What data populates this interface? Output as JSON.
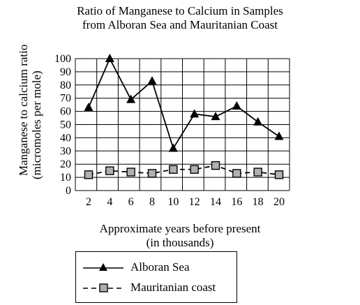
{
  "chart_data": {
    "type": "line",
    "title_line1": "Ratio of Manganese to Calcium in Samples",
    "title_line2": "from Alboran Sea and Mauritanian Coast",
    "xlabel_line1": "Approximate years before present",
    "xlabel_line2": "(in thousands)",
    "ylabel_line1": "Manganese to calcium ratio",
    "ylabel_line2": "(micromoles per mole)",
    "x": [
      2,
      4,
      6,
      8,
      10,
      12,
      14,
      16,
      18,
      20
    ],
    "xlim": [
      2,
      20
    ],
    "ylim": [
      0,
      100
    ],
    "yticks": [
      0,
      10,
      20,
      30,
      40,
      50,
      60,
      70,
      80,
      90,
      100
    ],
    "grid": true,
    "legend_position": "bottom",
    "series": [
      {
        "name": "Alboran Sea",
        "marker": "triangle",
        "line": "solid",
        "values": [
          63,
          100,
          69,
          83,
          32,
          58,
          56,
          64,
          52,
          41
        ]
      },
      {
        "name": "Mauritanian coast",
        "marker": "square",
        "line": "dashed",
        "values": [
          12,
          15,
          14,
          13,
          16,
          16,
          19,
          13,
          14,
          12
        ]
      }
    ],
    "colors": {
      "line": "#000000",
      "square_fill": "#b0b0b0",
      "grid": "#000000"
    }
  }
}
